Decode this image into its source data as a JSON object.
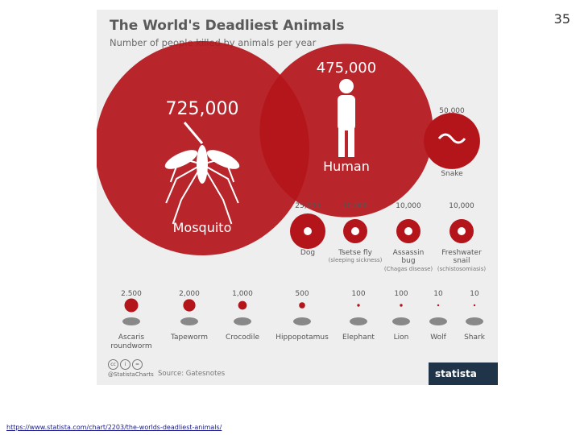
{
  "slide": {
    "number": "35",
    "link": "https://www.statista.com/chart/2203/the-worlds-deadliest-animals/"
  },
  "infographic": {
    "title": "The World's Deadliest Animals",
    "subtitle": "Number of people killed by animals per year",
    "source": "Source: Gatesnotes",
    "cc_label": "@StatistaCharts",
    "brand": "statista",
    "cc_icons": [
      "cc",
      "i",
      "="
    ]
  },
  "colors": {
    "primary": "#b3151b",
    "dark_red": "#8a0f14",
    "icon_grey": "#888888",
    "panel_bg": "#eeeeee",
    "footer_bg": "#1f3349"
  },
  "chart_data": {
    "type": "bubble",
    "title": "The World's Deadliest Animals",
    "subtitle": "Number of people killed by animals per year",
    "categories": [
      "Mosquito",
      "Human",
      "Snake",
      "Dog",
      "Tsetse fly",
      "Assassin bug",
      "Freshwater snail",
      "Ascaris roundworm",
      "Tapeworm",
      "Crocodile",
      "Hippopotamus",
      "Elephant",
      "Lion",
      "Wolf",
      "Shark"
    ],
    "values": [
      725000,
      475000,
      50000,
      25000,
      10000,
      10000,
      10000,
      2500,
      2000,
      1000,
      500,
      100,
      100,
      10,
      10
    ],
    "value_labels": [
      "725,000",
      "475,000",
      "50,000",
      "25,000",
      "10,000",
      "10,000",
      "10,000",
      "2.500",
      "2,000",
      "1,000",
      "500",
      "100",
      "100",
      "10",
      "10"
    ],
    "notes": [
      "",
      "",
      "",
      "",
      "(sleeping sickness)",
      "(Chagas disease)",
      "(schistosomiasis)",
      "",
      "",
      "",
      "",
      "",
      "",
      "",
      ""
    ],
    "icons": [
      "mosquito-icon",
      "human-icon",
      "snake-icon",
      "dog-icon",
      "fly-icon",
      "bug-icon",
      "snail-icon",
      "worm-icon",
      "tapeworm-icon",
      "crocodile-icon",
      "hippopotamus-icon",
      "elephant-icon",
      "lion-icon",
      "wolf-icon",
      "shark-icon"
    ]
  }
}
